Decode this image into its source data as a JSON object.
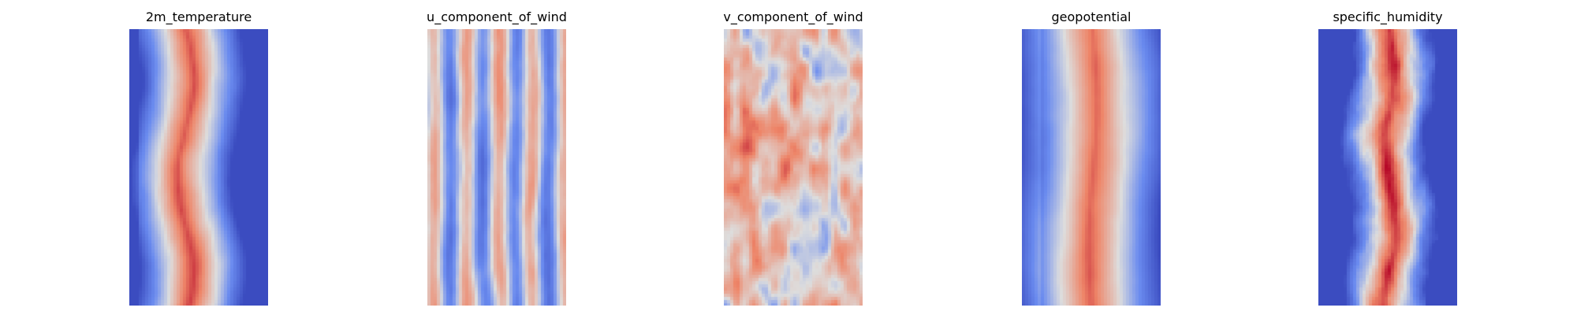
{
  "figure": {
    "colormap": "coolwarm",
    "colors": {
      "cold": "#3b4cc0",
      "neutral": "#dddddd",
      "warm": "#b40426"
    },
    "panels": [
      {
        "title": "2m_temperature",
        "pattern": "band"
      },
      {
        "title": "u_component_of_wind",
        "pattern": "streaks"
      },
      {
        "title": "v_component_of_wind",
        "pattern": "patches"
      },
      {
        "title": "geopotential",
        "pattern": "smooth_band"
      },
      {
        "title": "specific_humidity",
        "pattern": "narrow_band"
      }
    ]
  }
}
